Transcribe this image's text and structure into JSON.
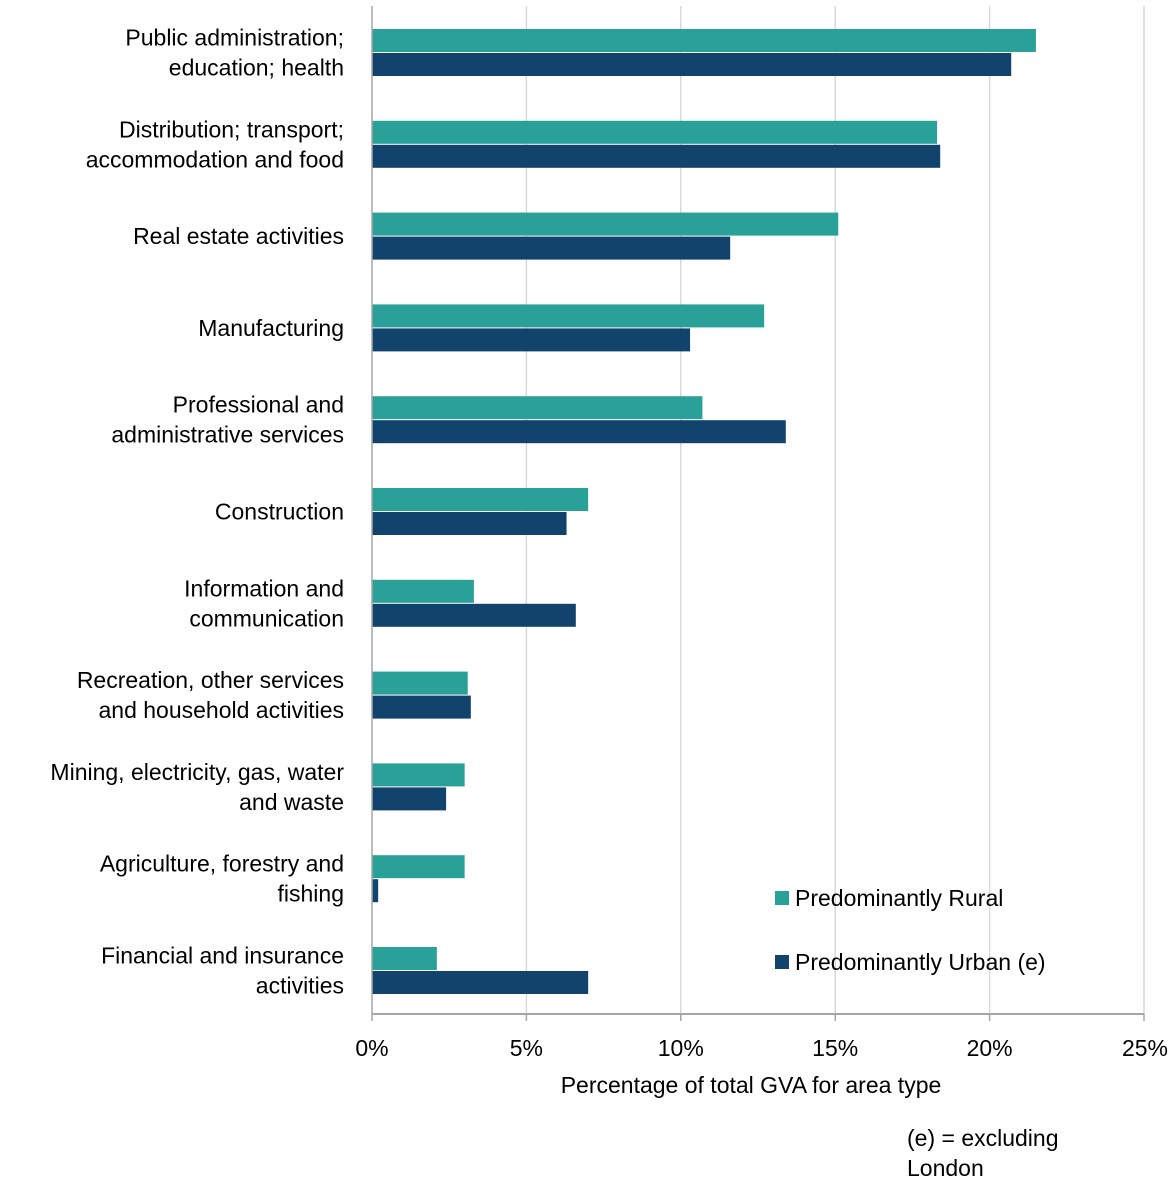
{
  "chart_data": {
    "type": "bar",
    "orientation": "horizontal",
    "title": "",
    "xlabel": "Percentage of total GVA for area type",
    "ylabel": "",
    "xlim": [
      0,
      25
    ],
    "x_ticks": [
      0,
      5,
      10,
      15,
      20,
      25
    ],
    "x_tick_labels": [
      "0%",
      "5%",
      "10%",
      "15%",
      "20%",
      "25%"
    ],
    "grid": "vertical",
    "legend_position": "bottom-right",
    "categories": [
      [
        "Public administration;",
        "education; health"
      ],
      [
        "Distribution; transport;",
        "accommodation and food"
      ],
      [
        "Real estate activities"
      ],
      [
        "Manufacturing"
      ],
      [
        "Professional and",
        "administrative services"
      ],
      [
        "Construction"
      ],
      [
        "Information and",
        "communication"
      ],
      [
        "Recreation, other services",
        "and household activities"
      ],
      [
        "Mining, electricity, gas, water",
        "and waste"
      ],
      [
        "Agriculture, forestry and",
        "fishing"
      ],
      [
        "Financial and insurance",
        "activities"
      ]
    ],
    "series": [
      {
        "name": "Predominantly Rural",
        "color": "#2aa198",
        "values": [
          21.5,
          18.3,
          15.1,
          12.7,
          10.7,
          7.0,
          3.3,
          3.1,
          3.0,
          3.0,
          2.1
        ]
      },
      {
        "name": "Predominantly Urban (e)",
        "color": "#12436d",
        "values": [
          20.7,
          18.4,
          11.6,
          10.3,
          13.4,
          6.3,
          6.6,
          3.2,
          2.4,
          0.2,
          7.0
        ]
      }
    ],
    "note": [
      "(e) = excluding",
      "London"
    ]
  }
}
